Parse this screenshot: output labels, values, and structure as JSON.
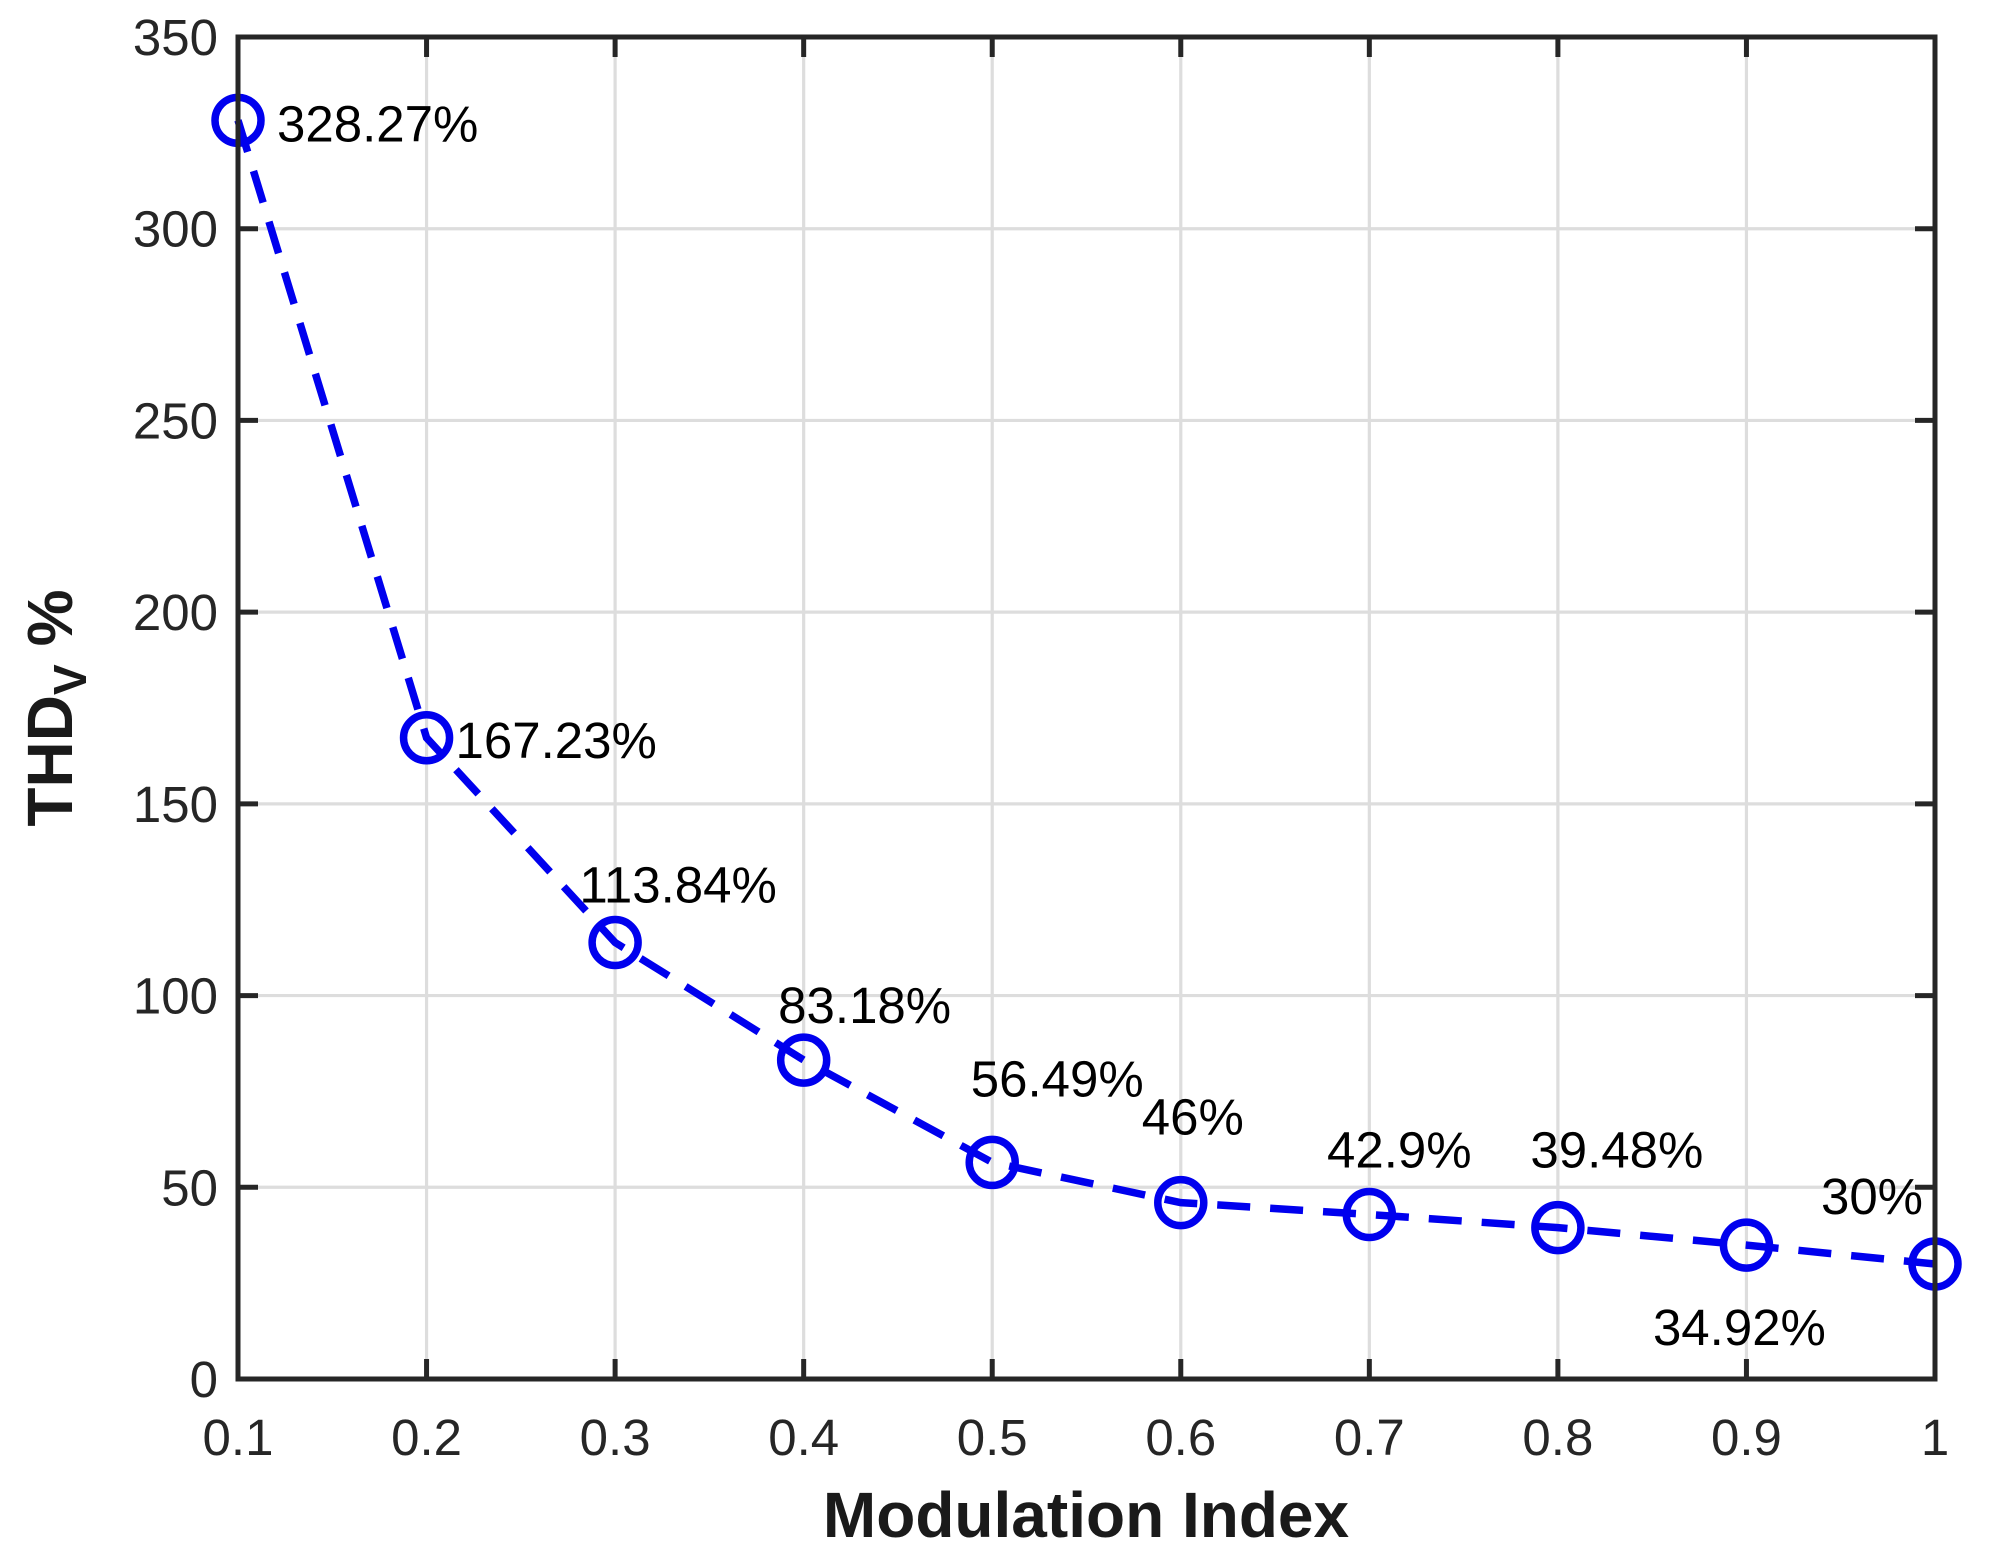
{
  "chart_data": {
    "type": "line",
    "title": "",
    "xlabel": "Modulation Index",
    "ylabel": {
      "base": "THD",
      "subscript": "V",
      "suffix": "%"
    },
    "x": [
      0.1,
      0.2,
      0.3,
      0.4,
      0.5,
      0.6,
      0.7,
      0.8,
      0.9,
      1.0
    ],
    "series": [
      {
        "name": "THDv",
        "values": [
          328.27,
          167.23,
          113.84,
          83.18,
          56.49,
          46,
          42.9,
          39.48,
          34.92,
          30
        ],
        "line_style": "dashed",
        "marker": "open-circle",
        "color": "#0000EE"
      }
    ],
    "point_labels": [
      "328.27%",
      "167.23%",
      "113.84%",
      "83.18%",
      "56.49%",
      "46%",
      "42.9%",
      "39.48%",
      "34.92%",
      "30%"
    ],
    "xlim": [
      0.1,
      1
    ],
    "ylim": [
      0,
      350
    ],
    "xticks": {
      "values": [
        0.1,
        0.2,
        0.3,
        0.4,
        0.5,
        0.6,
        0.7,
        0.8,
        0.9,
        1.0
      ],
      "labels": [
        "0.1",
        "0.2",
        "0.3",
        "0.4",
        "0.5",
        "0.6",
        "0.7",
        "0.8",
        "0.9",
        "1"
      ]
    },
    "yticks": {
      "values": [
        0,
        50,
        100,
        150,
        200,
        250,
        300,
        350
      ],
      "labels": [
        "0",
        "50",
        "100",
        "150",
        "200",
        "250",
        "300",
        "350"
      ]
    },
    "grid": true,
    "legend": null,
    "colors": {
      "line": "#0000EE",
      "axis": "#262626",
      "grid": "#DDDDDD",
      "tick_text": "#262626",
      "label_text": "#1a1a1a",
      "point_label_text": "#000000",
      "background": "#ffffff"
    }
  }
}
